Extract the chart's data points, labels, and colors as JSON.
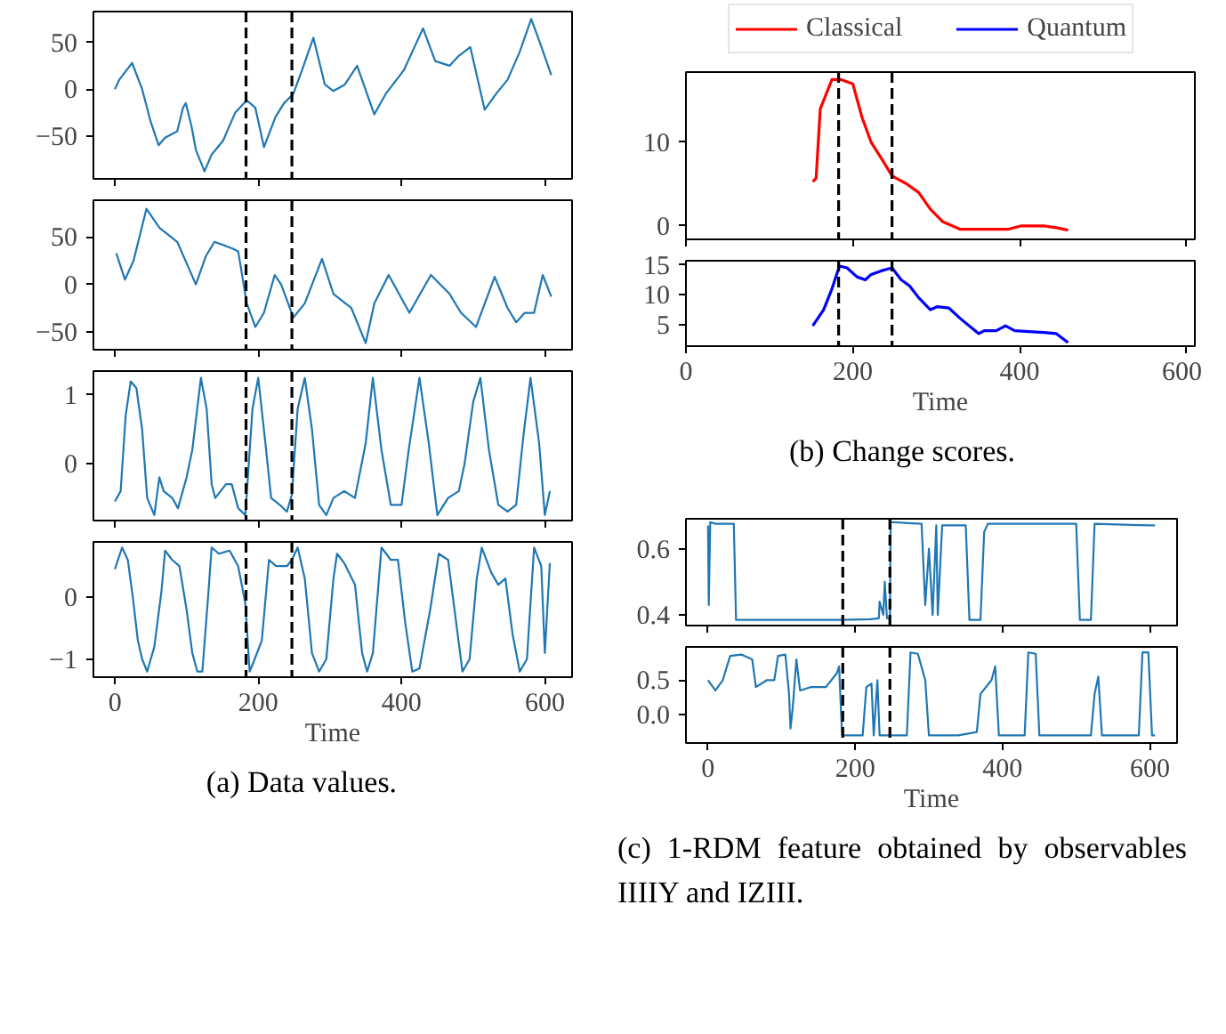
{
  "chart_data": [
    {
      "type": "line",
      "xlim": [
        -30,
        638
      ],
      "xticks": [
        0,
        200,
        400,
        600
      ],
      "ylim": [
        -96,
        83
      ],
      "yticks": [
        -50,
        0,
        50
      ],
      "tick_labels": "y",
      "grid": false,
      "ref_lines": [
        {
          "axis": "x",
          "value": 183,
          "color": "#000000",
          "line_style": "dashed"
        },
        {
          "axis": "x",
          "value": 247,
          "color": "#000000",
          "line_style": "dashed"
        }
      ],
      "series": [
        {
          "color": "#1f77b4",
          "x": [
            0,
            6,
            24,
            38,
            50,
            61,
            70,
            87,
            95,
            99,
            107,
            113,
            125,
            135,
            151,
            168,
            184,
            196,
            208,
            224,
            236,
            249,
            261,
            277,
            293,
            305,
            321,
            338,
            362,
            378,
            403,
            430,
            447,
            467,
            479,
            496,
            516,
            532,
            548,
            565,
            581,
            593,
            609
          ],
          "values": [
            0,
            10,
            28,
            0,
            -35,
            -60,
            -52,
            -45,
            -20,
            -15,
            -40,
            -65,
            -88,
            -70,
            -55,
            -25,
            -12,
            -20,
            -62,
            -30,
            -15,
            -5,
            20,
            55,
            5,
            -2,
            5,
            25,
            -27,
            -5,
            20,
            65,
            30,
            25,
            35,
            45,
            -22,
            -5,
            10,
            40,
            75,
            50,
            15
          ]
        }
      ]
    },
    {
      "type": "line",
      "xlim": [
        -30,
        638
      ],
      "xticks": [
        0,
        200,
        400,
        600
      ],
      "ylim": [
        -69,
        89
      ],
      "yticks": [
        -50,
        0,
        50
      ],
      "tick_labels": "y",
      "grid": false,
      "ref_lines": [
        {
          "axis": "x",
          "value": 183,
          "color": "#000000",
          "line_style": "dashed"
        },
        {
          "axis": "x",
          "value": 247,
          "color": "#000000",
          "line_style": "dashed"
        }
      ],
      "series": [
        {
          "color": "#1f77b4",
          "x": [
            2,
            14,
            26,
            44,
            62,
            87,
            113,
            127,
            139,
            164,
            172,
            184,
            196,
            208,
            223,
            232,
            249,
            265,
            289,
            305,
            330,
            350,
            362,
            382,
            411,
            441,
            467,
            483,
            504,
            530,
            548,
            560,
            572,
            585,
            597,
            609
          ],
          "values": [
            33,
            5,
            25,
            80,
            60,
            45,
            0,
            30,
            45,
            38,
            35,
            -20,
            -45,
            -30,
            10,
            0,
            -35,
            -20,
            27,
            -10,
            -25,
            -62,
            -20,
            10,
            -30,
            10,
            -10,
            -30,
            -45,
            8,
            -25,
            -40,
            -30,
            -30,
            10,
            -13
          ]
        }
      ]
    },
    {
      "type": "line",
      "xlim": [
        -30,
        638
      ],
      "xticks": [
        0,
        200,
        400,
        600
      ],
      "ylim": [
        -0.83,
        1.35
      ],
      "yticks": [
        0,
        1
      ],
      "tick_labels": "y",
      "grid": false,
      "ref_lines": [
        {
          "axis": "x",
          "value": 183,
          "color": "#000000",
          "line_style": "dashed"
        },
        {
          "axis": "x",
          "value": 247,
          "color": "#000000",
          "line_style": "dashed"
        }
      ],
      "series": [
        {
          "color": "#1f77b4",
          "x": [
            0,
            8,
            15,
            22,
            30,
            38,
            45,
            55,
            62,
            68,
            80,
            88,
            100,
            108,
            120,
            128,
            135,
            140,
            155,
            163,
            172,
            182,
            192,
            200,
            210,
            218,
            230,
            240,
            247,
            255,
            265,
            275,
            285,
            295,
            305,
            320,
            335,
            350,
            360,
            372,
            385,
            400,
            410,
            425,
            438,
            450,
            465,
            480,
            488,
            500,
            510,
            522,
            535,
            548,
            560,
            570,
            580,
            592,
            600,
            607
          ],
          "values": [
            -0.55,
            -0.4,
            0.7,
            1.2,
            1.1,
            0.5,
            -0.5,
            -0.75,
            -0.2,
            -0.4,
            -0.5,
            -0.65,
            -0.2,
            0.2,
            1.25,
            0.8,
            -0.3,
            -0.5,
            -0.3,
            -0.3,
            -0.65,
            -0.75,
            0.8,
            1.25,
            0.3,
            -0.5,
            -0.6,
            -0.7,
            -0.45,
            0.8,
            1.25,
            0.5,
            -0.6,
            -0.75,
            -0.5,
            -0.4,
            -0.5,
            0.3,
            1.25,
            0.2,
            -0.6,
            -0.6,
            0.2,
            1.25,
            0.3,
            -0.75,
            -0.5,
            -0.4,
            0.0,
            0.9,
            1.25,
            0.2,
            -0.6,
            -0.7,
            -0.6,
            0.4,
            1.25,
            0.3,
            -0.75,
            -0.4
          ]
        }
      ]
    },
    {
      "type": "line",
      "xlabel": "Time",
      "xlim": [
        -30,
        638
      ],
      "xticks": [
        0,
        200,
        400,
        600
      ],
      "ylim": [
        -1.29,
        0.89
      ],
      "yticks": [
        -1,
        0
      ],
      "grid": false,
      "annotations": [
        "(a) Data values."
      ],
      "ref_lines": [
        {
          "axis": "x",
          "value": 183,
          "color": "#000000",
          "line_style": "dashed"
        },
        {
          "axis": "x",
          "value": 247,
          "color": "#000000",
          "line_style": "dashed"
        }
      ],
      "series": [
        {
          "color": "#1f77b4",
          "x": [
            0,
            10,
            18,
            25,
            32,
            38,
            45,
            55,
            65,
            70,
            80,
            90,
            100,
            108,
            115,
            122,
            130,
            135,
            145,
            160,
            172,
            182,
            188,
            195,
            205,
            215,
            225,
            240,
            247,
            255,
            265,
            275,
            285,
            295,
            305,
            310,
            320,
            335,
            345,
            352,
            360,
            372,
            385,
            395,
            405,
            415,
            425,
            440,
            452,
            465,
            475,
            485,
            495,
            505,
            512,
            525,
            535,
            545,
            555,
            565,
            575,
            585,
            595,
            600,
            607
          ],
          "values": [
            0.45,
            0.8,
            0.6,
            0,
            -0.7,
            -1.0,
            -1.2,
            -0.8,
            0.1,
            0.75,
            0.6,
            0.5,
            -0.2,
            -0.9,
            -1.2,
            -1.2,
            0.0,
            0.8,
            0.7,
            0.75,
            0.5,
            -0.1,
            -1.2,
            -1.0,
            -0.7,
            0.6,
            0.5,
            0.5,
            0.6,
            0.8,
            0.3,
            -0.9,
            -1.2,
            -1.0,
            0.3,
            0.7,
            0.55,
            0.2,
            -0.9,
            -1.2,
            -0.9,
            0.8,
            0.6,
            0.6,
            -0.4,
            -1.2,
            -1.15,
            -0.2,
            0.7,
            0.6,
            -0.3,
            -1.2,
            -1.0,
            0.3,
            0.8,
            0.4,
            0.2,
            0.3,
            -0.6,
            -1.2,
            -1.0,
            0.8,
            0.5,
            -0.9,
            0.55
          ]
        }
      ]
    },
    {
      "type": "line",
      "xlim": [
        0,
        610
      ],
      "xticks": [
        0,
        200,
        400,
        600
      ],
      "ylim": [
        -1.6,
        18.4
      ],
      "yticks": [
        0,
        10
      ],
      "tick_labels": "y",
      "grid": false,
      "legend": "top",
      "ref_lines": [
        {
          "axis": "x",
          "value": 183,
          "color": "#000000",
          "line_style": "dashed"
        },
        {
          "axis": "x",
          "value": 247,
          "color": "#000000",
          "line_style": "dashed"
        }
      ],
      "series": [
        {
          "name": "Classical",
          "color": "#ff0000",
          "x": [
            152,
            156,
            161,
            167,
            175,
            186,
            200,
            211,
            222,
            236,
            247,
            265,
            279,
            293,
            308,
            329,
            358,
            386,
            401,
            429,
            444,
            458
          ],
          "values": [
            5.3,
            5.7,
            14,
            15.5,
            17.5,
            17.5,
            17,
            13,
            10,
            7.8,
            6,
            5,
            4,
            2,
            0.5,
            -0.4,
            -0.4,
            -0.4,
            0,
            0,
            -0.2,
            -0.5
          ]
        }
      ]
    },
    {
      "type": "line",
      "xlabel": "Time",
      "xlim": [
        0,
        610
      ],
      "xticks": [
        0,
        200,
        400,
        600
      ],
      "ylim": [
        1.4,
        15.7
      ],
      "yticks": [
        5,
        10,
        15
      ],
      "grid": false,
      "annotations": [
        "(b) Change scores."
      ],
      "ref_lines": [
        {
          "axis": "x",
          "value": 183,
          "color": "#000000",
          "line_style": "dashed"
        },
        {
          "axis": "x",
          "value": 247,
          "color": "#000000",
          "line_style": "dashed"
        }
      ],
      "series": [
        {
          "name": "Quantum",
          "color": "#0000ff",
          "x": [
            152,
            165,
            175,
            184,
            193,
            205,
            215,
            222,
            234,
            247,
            258,
            268,
            279,
            293,
            301,
            315,
            329,
            351,
            358,
            372,
            383,
            394,
            415,
            429,
            444,
            458
          ],
          "values": [
            4.8,
            7.5,
            11,
            14.8,
            14.5,
            13,
            12.5,
            13.4,
            14,
            14.5,
            12.5,
            11.5,
            9.5,
            7.5,
            8,
            7.8,
            6,
            3.5,
            4,
            4,
            4.8,
            4,
            3.8,
            3.7,
            3.5,
            2
          ]
        }
      ]
    },
    {
      "type": "line",
      "xlim": [
        -30,
        637
      ],
      "xticks": [
        0,
        200,
        400,
        600
      ],
      "ylim": [
        0.368,
        0.69
      ],
      "yticks": [
        0.4,
        0.6
      ],
      "tick_labels": "y",
      "grid": false,
      "ref_lines": [
        {
          "axis": "x",
          "value": 183,
          "color": "#000000",
          "line_style": "dashed"
        },
        {
          "axis": "x",
          "value": 247,
          "color": "#000000",
          "line_style": "dashed"
        }
      ],
      "series": [
        {
          "color": "#1f77b4",
          "x": [
            0,
            1,
            3,
            10,
            35,
            38,
            100,
            180,
            220,
            232,
            233,
            238,
            240,
            243,
            247,
            248,
            290,
            295,
            300,
            305,
            310,
            312,
            318,
            350,
            355,
            370,
            375,
            380,
            500,
            505,
            520,
            525,
            600,
            607
          ],
          "values": [
            0.67,
            0.43,
            0.68,
            0.675,
            0.675,
            0.385,
            0.385,
            0.385,
            0.387,
            0.39,
            0.44,
            0.4,
            0.5,
            0.39,
            0.39,
            0.68,
            0.675,
            0.43,
            0.6,
            0.4,
            0.67,
            0.4,
            0.67,
            0.67,
            0.385,
            0.385,
            0.65,
            0.675,
            0.675,
            0.385,
            0.385,
            0.675,
            0.67,
            0.67
          ]
        }
      ]
    },
    {
      "type": "line",
      "xlabel": "Time",
      "xlim": [
        -30,
        637
      ],
      "xticks": [
        0,
        200,
        400,
        600
      ],
      "ylim": [
        -0.41,
        0.98
      ],
      "yticks": [
        {
          "value": 0,
          "label": "0.0"
        },
        0.5
      ],
      "grid": false,
      "annotations": [
        "(c) 1-RDM feature obtained by observables IIIIY and IZIII."
      ],
      "ref_lines": [
        {
          "axis": "x",
          "value": 183,
          "color": "#000000",
          "line_style": "dashed"
        },
        {
          "axis": "x",
          "value": 247,
          "color": "#000000",
          "line_style": "dashed"
        }
      ],
      "series": [
        {
          "color": "#1f77b4",
          "x": [
            0,
            10,
            20,
            30,
            45,
            60,
            65,
            80,
            90,
            95,
            105,
            110,
            112,
            115,
            120,
            125,
            140,
            160,
            175,
            178,
            182,
            200,
            210,
            215,
            222,
            225,
            230,
            233,
            247,
            270,
            275,
            285,
            295,
            300,
            340,
            365,
            370,
            385,
            390,
            395,
            430,
            435,
            445,
            450,
            520,
            525,
            530,
            535,
            585,
            590,
            598,
            603,
            607
          ],
          "values": [
            0.5,
            0.35,
            0.5,
            0.85,
            0.87,
            0.8,
            0.4,
            0.5,
            0.5,
            0.85,
            0.87,
            0.3,
            -0.2,
            0.1,
            0.8,
            0.35,
            0.4,
            0.4,
            0.6,
            0.7,
            -0.3,
            -0.3,
            -0.3,
            0.4,
            0.45,
            -0.3,
            0.5,
            -0.3,
            -0.3,
            -0.3,
            0.9,
            0.88,
            0.5,
            -0.3,
            -0.3,
            -0.25,
            0.3,
            0.5,
            0.7,
            -0.3,
            -0.3,
            0.9,
            0.88,
            -0.3,
            -0.3,
            0.3,
            0.55,
            -0.3,
            -0.3,
            0.9,
            0.9,
            -0.3,
            -0.3
          ]
        }
      ]
    }
  ]
}
